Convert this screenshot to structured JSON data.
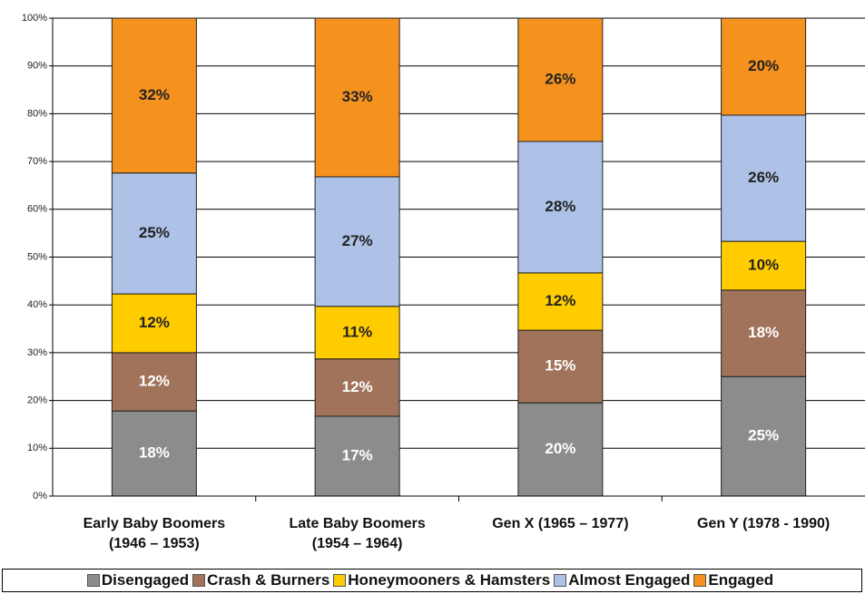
{
  "chart_data": {
    "type": "stacked_bar",
    "categories": [
      "Early Baby Boomers\n(1946 – 1953)",
      "Late Baby Boomers\n(1954 – 1964)",
      "Gen X (1965 – 1977)",
      "Gen Y (1978 - 1990)"
    ],
    "series": [
      {
        "name": "Disengaged",
        "color": "#8c8c8c",
        "values": [
          17.8,
          16.7,
          19.5,
          25.0
        ],
        "value_labels": [
          "18%",
          "17%",
          "20%",
          "25%"
        ]
      },
      {
        "name": "Crash & Burners",
        "color": "#a0735a",
        "values": [
          12.2,
          12.0,
          15.2,
          18.1
        ],
        "value_labels": [
          "12%",
          "12%",
          "15%",
          "18%"
        ]
      },
      {
        "name": "Honeymooners & Hamsters",
        "color": "#ffcc00",
        "values": [
          12.3,
          11.0,
          12.0,
          10.2
        ],
        "value_labels": [
          "12%",
          "11%",
          "12%",
          "10%"
        ]
      },
      {
        "name": "Almost Engaged",
        "color": "#adc2e6",
        "values": [
          25.3,
          27.1,
          27.5,
          26.4
        ],
        "value_labels": [
          "25%",
          "27%",
          "28%",
          "26%"
        ]
      },
      {
        "name": "Engaged",
        "color": "#f5921e",
        "values": [
          32.4,
          33.2,
          25.8,
          20.3
        ],
        "value_labels": [
          "32%",
          "33%",
          "26%",
          "20%"
        ]
      }
    ],
    "ylim": [
      0,
      100
    ],
    "yticks": [
      {
        "value": 0,
        "label": "0%"
      },
      {
        "value": 10,
        "label": "10%"
      },
      {
        "value": 20,
        "label": "20%"
      },
      {
        "value": 30,
        "label": "30%"
      },
      {
        "value": 40,
        "label": "40%"
      },
      {
        "value": 50,
        "label": "50%"
      },
      {
        "value": 60,
        "label": "60%"
      },
      {
        "value": 70,
        "label": "70%"
      },
      {
        "value": 80,
        "label": "80%"
      },
      {
        "value": 90,
        "label": "90%"
      },
      {
        "value": 100,
        "label": "100%"
      }
    ],
    "grid": true
  }
}
